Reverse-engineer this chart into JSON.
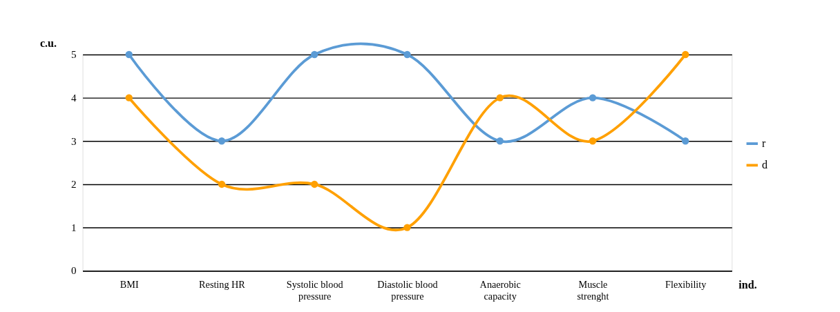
{
  "chart_data": {
    "type": "line",
    "xlabel": "ind.",
    "ylabel": "c.u.",
    "categories": [
      "BMI",
      "Resting HR",
      "Systolic blood pressure",
      "Diastolic blood pressure",
      "Anaerobic capacity",
      "Muscle strenght",
      "Flexibility"
    ],
    "series": [
      {
        "name": "r",
        "color": "#5b9bd5",
        "values": [
          5,
          3,
          5,
          5,
          3,
          4,
          3
        ]
      },
      {
        "name": "d",
        "color": "#ffa000",
        "values": [
          4,
          2,
          2,
          1,
          4,
          3,
          5
        ]
      }
    ],
    "ylim": [
      0,
      5
    ],
    "yticks": [
      0,
      1,
      2,
      3,
      4,
      5
    ],
    "grid": "y",
    "legend": "right",
    "marker": "circle",
    "line_style": "solid"
  }
}
